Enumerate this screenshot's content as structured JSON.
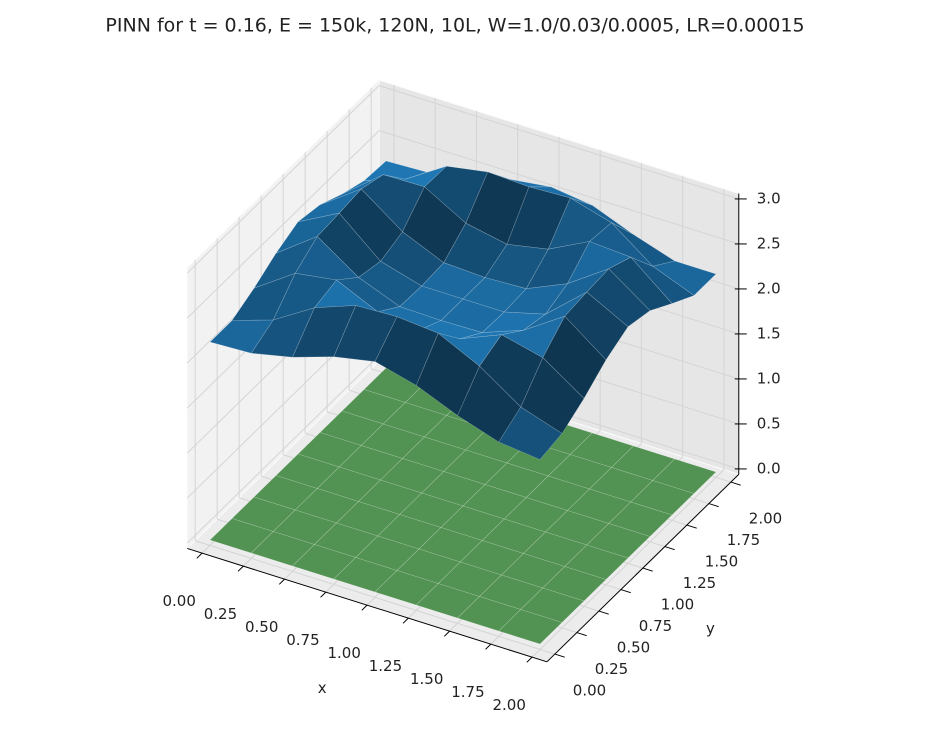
{
  "chart_data": {
    "type": "surface3d",
    "title": "PINN for t = 0.16, E = 150k, 120N, 10L, W=1.0/0.03/0.0005, LR=0.00015",
    "xlabel": "x",
    "ylabel": "y",
    "xlim": [
      0,
      2
    ],
    "ylim": [
      0,
      2
    ],
    "zlim": [
      0,
      3
    ],
    "xticks": [
      {
        "value": 0,
        "label": "0.00"
      },
      0.25,
      {
        "value": 0.5,
        "label": "0.50"
      },
      0.75,
      {
        "value": 1,
        "label": "1.00"
      },
      1.25,
      {
        "value": 1.5,
        "label": "1.50"
      },
      1.75,
      {
        "value": 2,
        "label": "2.00"
      }
    ],
    "yticks": [
      {
        "value": 0,
        "label": "0.00"
      },
      0.25,
      {
        "value": 0.5,
        "label": "0.50"
      },
      0.75,
      {
        "value": 1,
        "label": "1.00"
      },
      1.25,
      {
        "value": 1.5,
        "label": "1.50"
      },
      1.75,
      {
        "value": 2,
        "label": "2.00"
      }
    ],
    "zticks": [
      {
        "value": 0,
        "label": "0.0"
      },
      0.5,
      {
        "value": 1,
        "label": "1.0"
      },
      1.5,
      {
        "value": 2,
        "label": "2.0"
      },
      2.5,
      {
        "value": 3,
        "label": "3.0"
      }
    ],
    "grid": true,
    "x": [
      0,
      0.25,
      0.5,
      0.75,
      1,
      1.25,
      1.5,
      1.75,
      2
    ],
    "y": [
      0,
      0.25,
      0.5,
      0.75,
      1,
      1.25,
      1.5,
      1.75,
      2
    ],
    "surfaces": [
      {
        "color": "#1f77b4",
        "z": [
          [
            2.2,
            2.2,
            2.32,
            2.47,
            2.58,
            2.53,
            2.41,
            2.32,
            2.3
          ],
          [
            2.22,
            2.35,
            2.63,
            2.8,
            2.82,
            2.85,
            2.77,
            2.48,
            2.32
          ],
          [
            2.32,
            2.63,
            2.7,
            2.49,
            2.43,
            2.52,
            2.78,
            2.77,
            2.41
          ],
          [
            2.47,
            2.8,
            2.49,
            2.31,
            2.3,
            2.32,
            2.52,
            2.85,
            2.53
          ],
          [
            2.56,
            2.82,
            2.43,
            2.3,
            2.3,
            2.3,
            2.43,
            2.83,
            2.59
          ],
          [
            2.44,
            2.78,
            2.48,
            2.31,
            2.3,
            2.32,
            2.52,
            2.85,
            2.53
          ],
          [
            2.25,
            2.56,
            2.67,
            2.48,
            2.42,
            2.52,
            2.75,
            2.72,
            2.35
          ],
          [
            2.1,
            2.25,
            2.56,
            2.78,
            2.81,
            2.83,
            2.72,
            2.38,
            2.2
          ],
          [
            2.05,
            2.1,
            2.25,
            2.44,
            2.57,
            2.51,
            2.35,
            2.2,
            2.2
          ]
        ]
      },
      {
        "color": "#5ba35b",
        "z": [
          [
            0,
            0,
            0,
            0,
            0,
            0,
            0,
            0,
            0
          ],
          [
            0,
            0,
            0,
            0,
            0,
            0,
            0,
            0,
            0
          ],
          [
            0,
            0,
            0,
            0,
            0,
            0,
            0,
            0,
            0
          ],
          [
            0,
            0,
            0,
            0,
            0,
            0,
            0,
            0,
            0
          ],
          [
            0,
            0,
            0,
            0,
            0,
            0,
            0,
            0,
            0
          ],
          [
            0,
            0,
            0,
            0,
            0,
            0,
            0,
            0,
            0
          ],
          [
            0,
            0,
            0,
            0,
            0,
            0,
            0,
            0,
            0
          ],
          [
            0,
            0,
            0,
            0,
            0,
            0,
            0,
            0,
            0
          ],
          [
            0,
            0,
            0,
            0,
            0,
            0,
            0,
            0,
            0
          ]
        ]
      }
    ]
  }
}
